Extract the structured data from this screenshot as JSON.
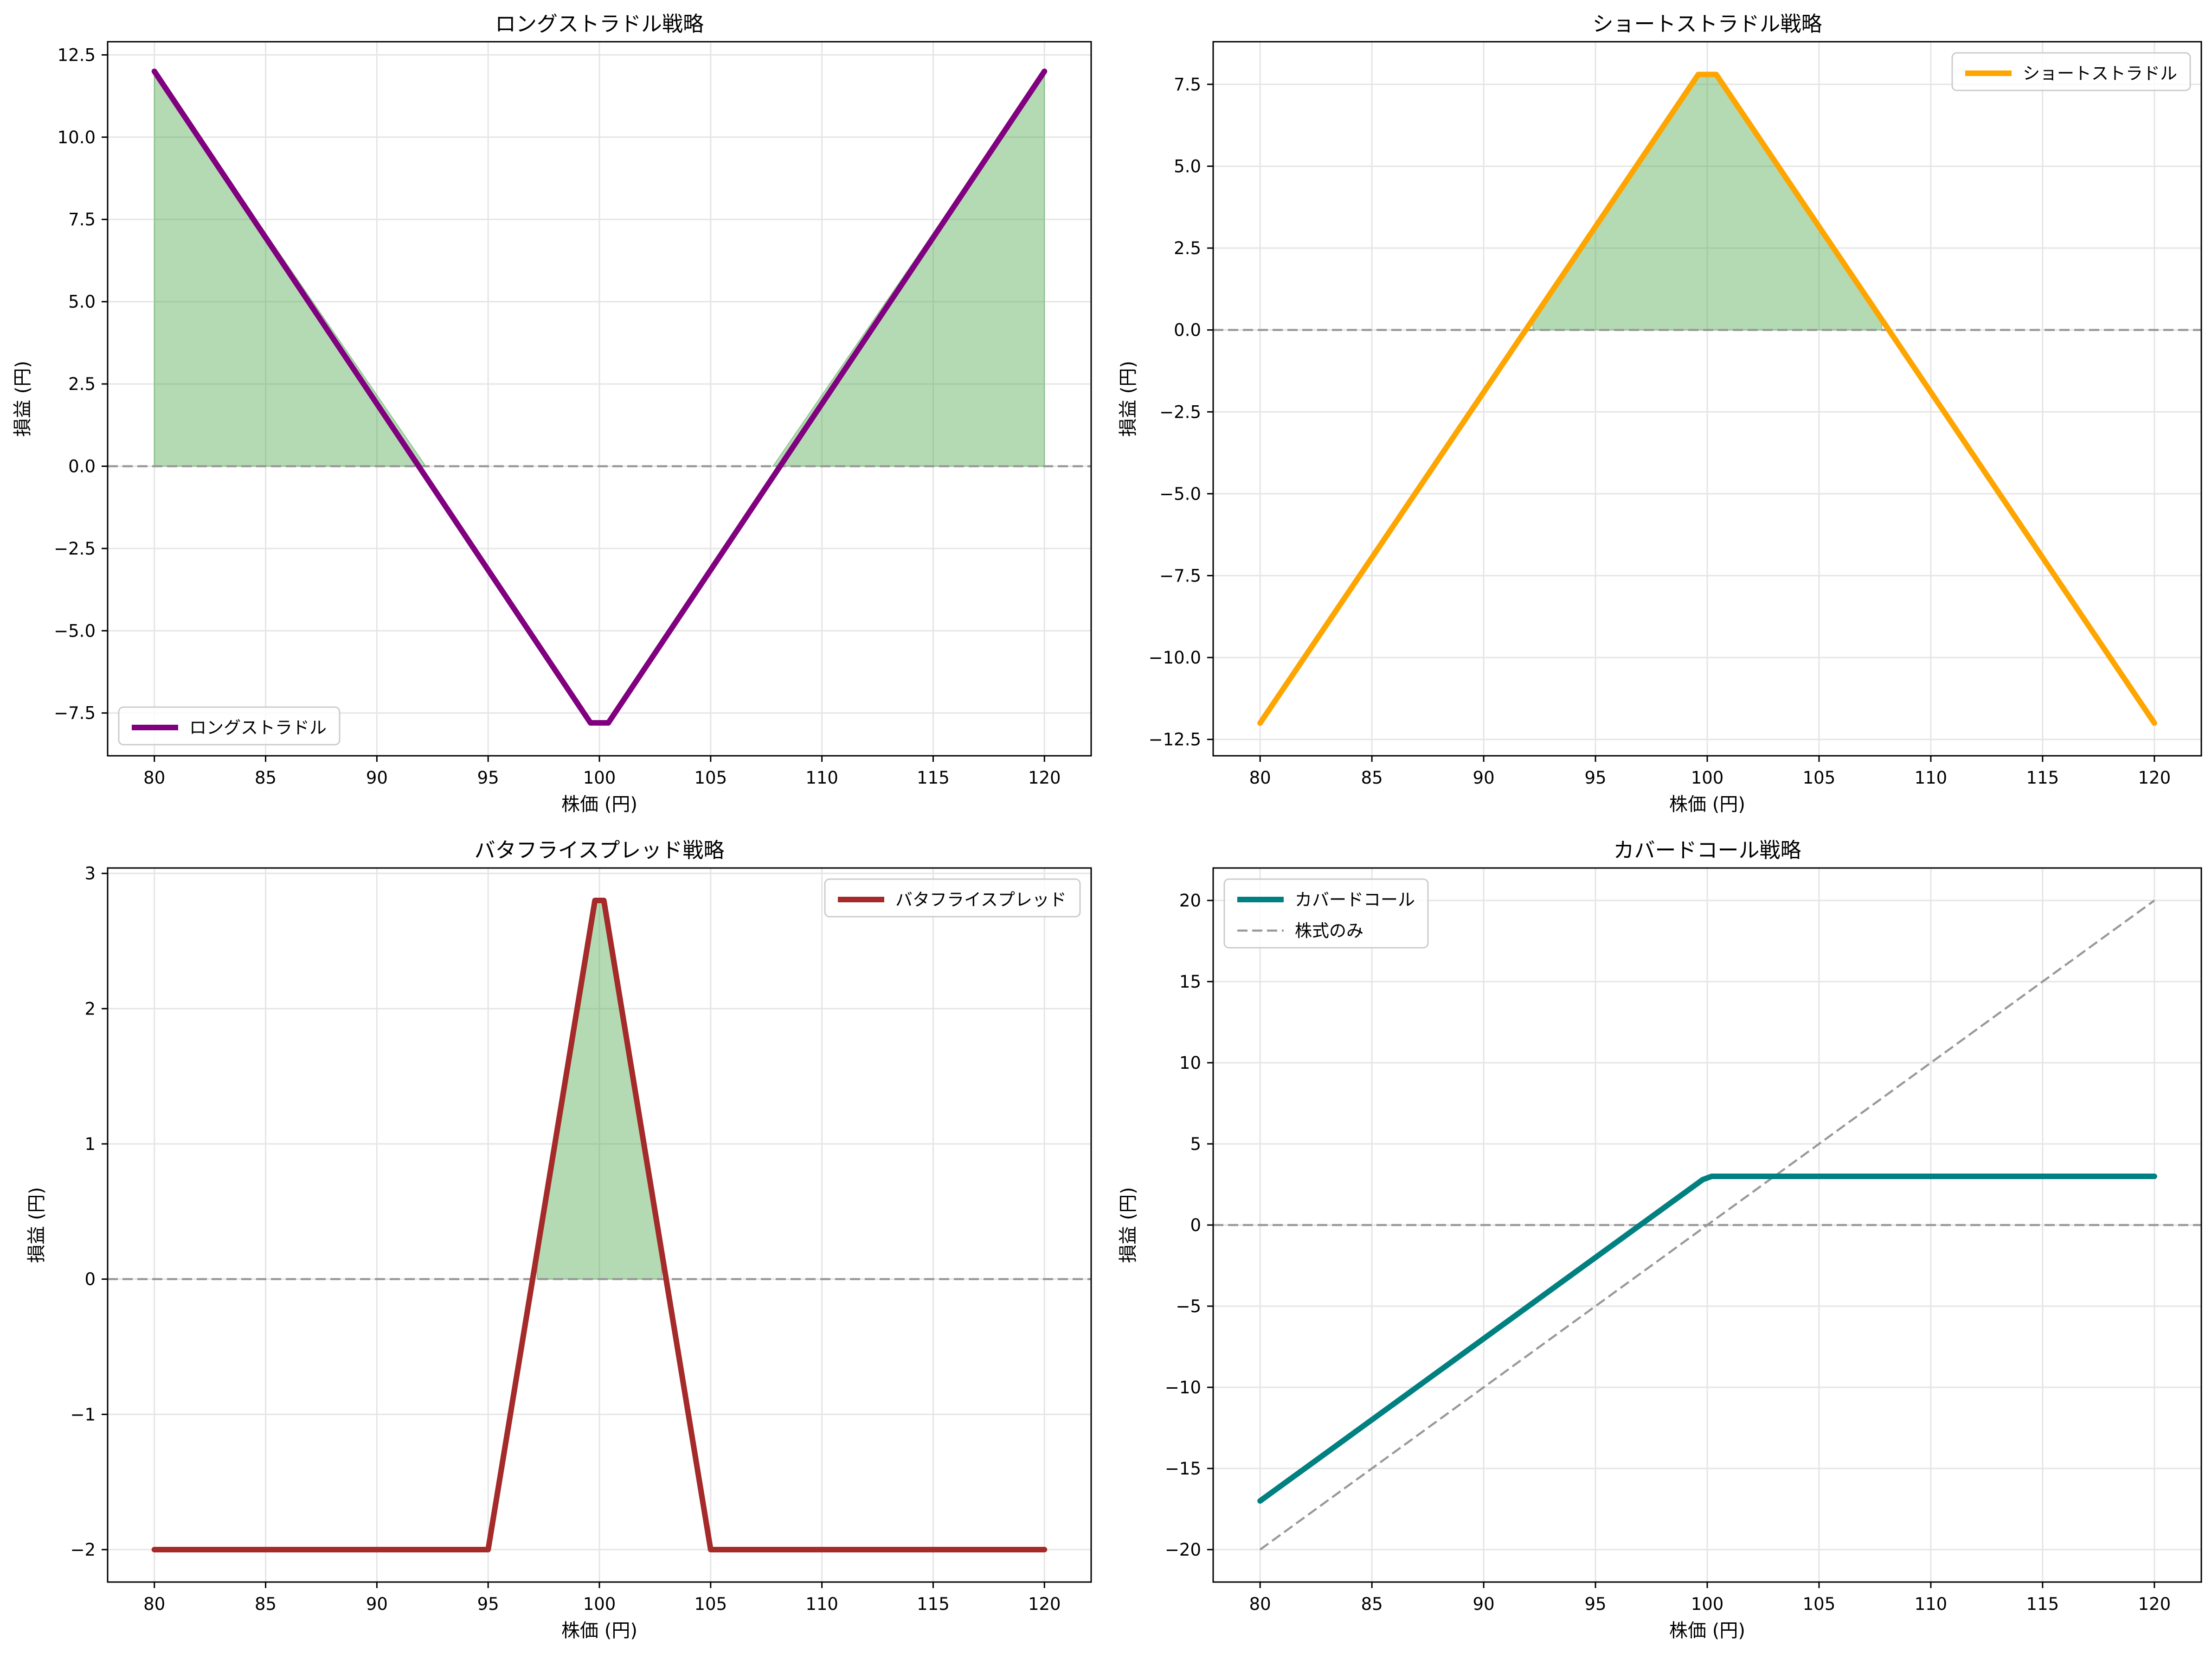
{
  "chart_data": [
    {
      "type": "line",
      "title": "ロングストラドル戦略",
      "xlabel": "株価 (円)",
      "ylabel": "損益 (円)",
      "xlim": [
        77.9,
        122.1
      ],
      "ylim": [
        -8.8,
        12.9
      ],
      "xticks": [
        80,
        85,
        90,
        95,
        100,
        105,
        110,
        115,
        120
      ],
      "yticks": [
        -7.5,
        -5.0,
        -2.5,
        0.0,
        2.5,
        5.0,
        7.5,
        10.0,
        12.5
      ],
      "grid": true,
      "legend_position": "lower-left",
      "zero_line": true,
      "series": [
        {
          "name": "ロングストラドル",
          "color": "#800080",
          "x": [
            80,
            99.6,
            100.4,
            120
          ],
          "y": [
            12.0,
            -7.8,
            -7.8,
            12.0
          ]
        }
      ],
      "profit_fill": {
        "color": "#4CA64C",
        "regions": [
          [
            80,
            92.2
          ],
          [
            107.8,
            120
          ]
        ]
      }
    },
    {
      "type": "line",
      "title": "ショートストラドル戦略",
      "xlabel": "株価 (円)",
      "ylabel": "損益 (円)",
      "xlim": [
        77.9,
        122.1
      ],
      "ylim": [
        -13.0,
        8.8
      ],
      "xticks": [
        80,
        85,
        90,
        95,
        100,
        105,
        110,
        115,
        120
      ],
      "yticks": [
        -12.5,
        -10.0,
        -7.5,
        -5.0,
        -2.5,
        0.0,
        2.5,
        5.0,
        7.5
      ],
      "grid": true,
      "legend_position": "top-right",
      "zero_line": true,
      "series": [
        {
          "name": "ショートストラドル",
          "color": "#FFA500",
          "x": [
            80,
            99.6,
            100.4,
            120
          ],
          "y": [
            -12.0,
            7.8,
            7.8,
            -12.0
          ]
        }
      ],
      "profit_fill": {
        "color": "#4CA64C",
        "regions": [
          [
            92.2,
            107.8
          ]
        ]
      }
    },
    {
      "type": "line",
      "title": "バタフライスプレッド戦略",
      "xlabel": "株価 (円)",
      "ylabel": "損益 (円)",
      "xlim": [
        77.9,
        122.1
      ],
      "ylim": [
        -2.24,
        3.04
      ],
      "xticks": [
        80,
        85,
        90,
        95,
        100,
        105,
        110,
        115,
        120
      ],
      "yticks": [
        -2,
        -1,
        0,
        1,
        2,
        3
      ],
      "grid": true,
      "legend_position": "top-right",
      "zero_line": true,
      "series": [
        {
          "name": "バタフライスプレッド",
          "color": "#A52A2A",
          "x": [
            80,
            95,
            99.8,
            100.2,
            105,
            120
          ],
          "y": [
            -2.0,
            -2.0,
            2.8,
            2.8,
            -2.0,
            -2.0
          ]
        }
      ],
      "profit_fill": {
        "color": "#4CA64C",
        "regions": [
          [
            97.2,
            102.8
          ]
        ]
      }
    },
    {
      "type": "line",
      "title": "カバードコール戦略",
      "xlabel": "株価 (円)",
      "ylabel": "損益 (円)",
      "xlim": [
        77.9,
        122.1
      ],
      "ylim": [
        -22.0,
        22.0
      ],
      "xticks": [
        80,
        85,
        90,
        95,
        100,
        105,
        110,
        115,
        120
      ],
      "yticks": [
        -20,
        -15,
        -10,
        -5,
        0,
        5,
        10,
        15,
        20
      ],
      "grid": true,
      "legend_position": "top-left",
      "zero_line": true,
      "series": [
        {
          "name": "カバードコール",
          "color": "#008080",
          "x": [
            80,
            99.8,
            100.2,
            120
          ],
          "y": [
            -17.0,
            2.8,
            3.0,
            3.0
          ]
        },
        {
          "name": "株式のみ",
          "color": "#999999",
          "dashed": true,
          "x": [
            80,
            120
          ],
          "y": [
            -20.0,
            20.0
          ]
        }
      ],
      "profit_fill": null
    }
  ]
}
